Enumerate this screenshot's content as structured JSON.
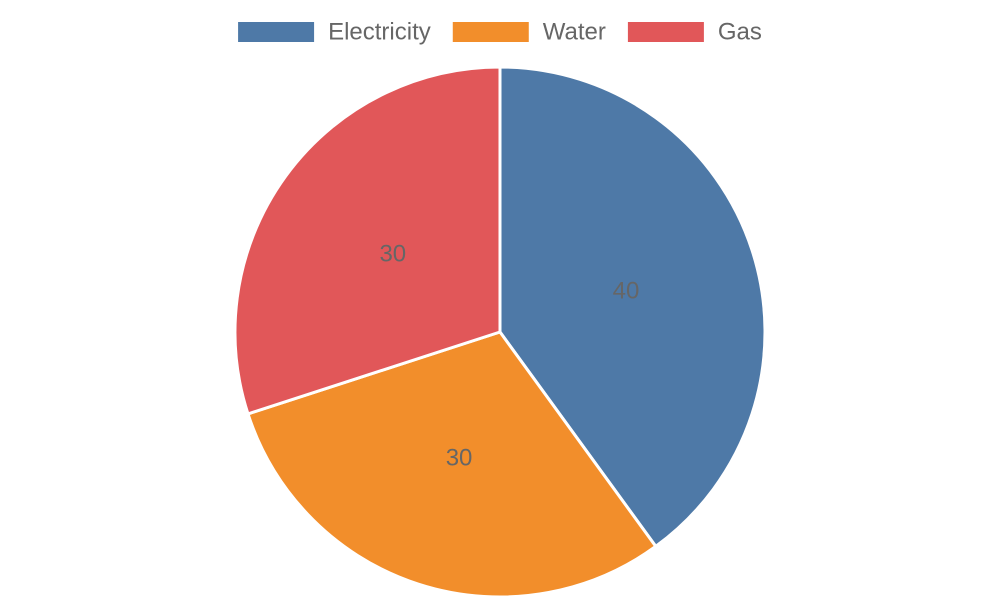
{
  "chart_data": {
    "type": "pie",
    "categories": [
      "Electricity",
      "Water",
      "Gas"
    ],
    "values": [
      40,
      30,
      30
    ],
    "colors": [
      "#4e79a7",
      "#f28e2b",
      "#e15759"
    ],
    "data_labels": [
      "40",
      "30",
      "30"
    ],
    "legend": {
      "placement": "top",
      "entries": [
        "Electricity",
        "Water",
        "Gas"
      ]
    },
    "start_angle": "top",
    "direction": "clockwise"
  }
}
